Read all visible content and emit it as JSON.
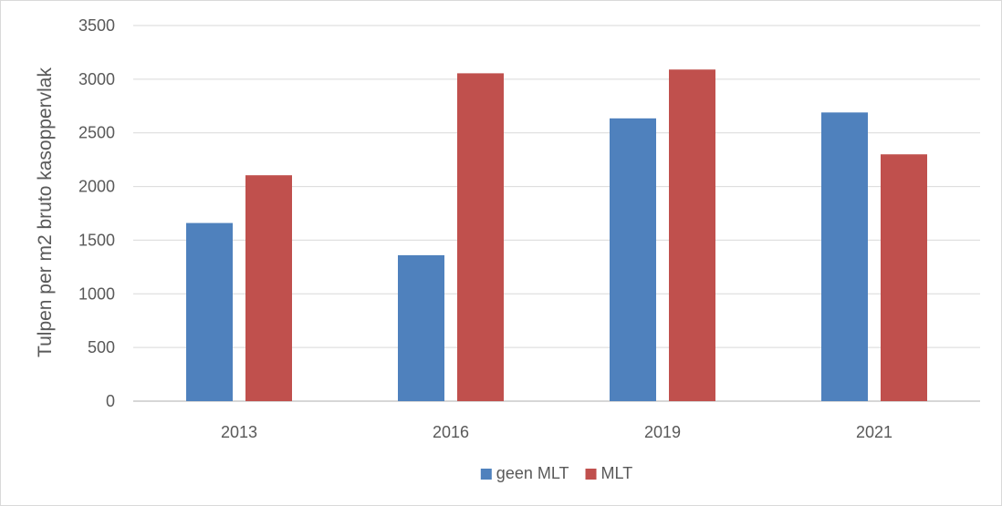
{
  "chart_data": {
    "type": "bar",
    "title": "",
    "xlabel": "",
    "ylabel": "Tulpen per m2 bruto kasoppervlak",
    "categories": [
      "2013",
      "2016",
      "2019",
      "2021"
    ],
    "ylim": [
      0,
      3500
    ],
    "yticks": [
      0,
      500,
      1000,
      1500,
      2000,
      2500,
      3000,
      3500
    ],
    "grid": true,
    "legend": "bottom",
    "series": [
      {
        "name": "geen MLT",
        "color": "#4f81bd",
        "values": [
          1660,
          1360,
          2635,
          2690
        ]
      },
      {
        "name": "MLT",
        "color": "#c0504d",
        "values": [
          2105,
          3055,
          3090,
          2300
        ]
      }
    ]
  }
}
